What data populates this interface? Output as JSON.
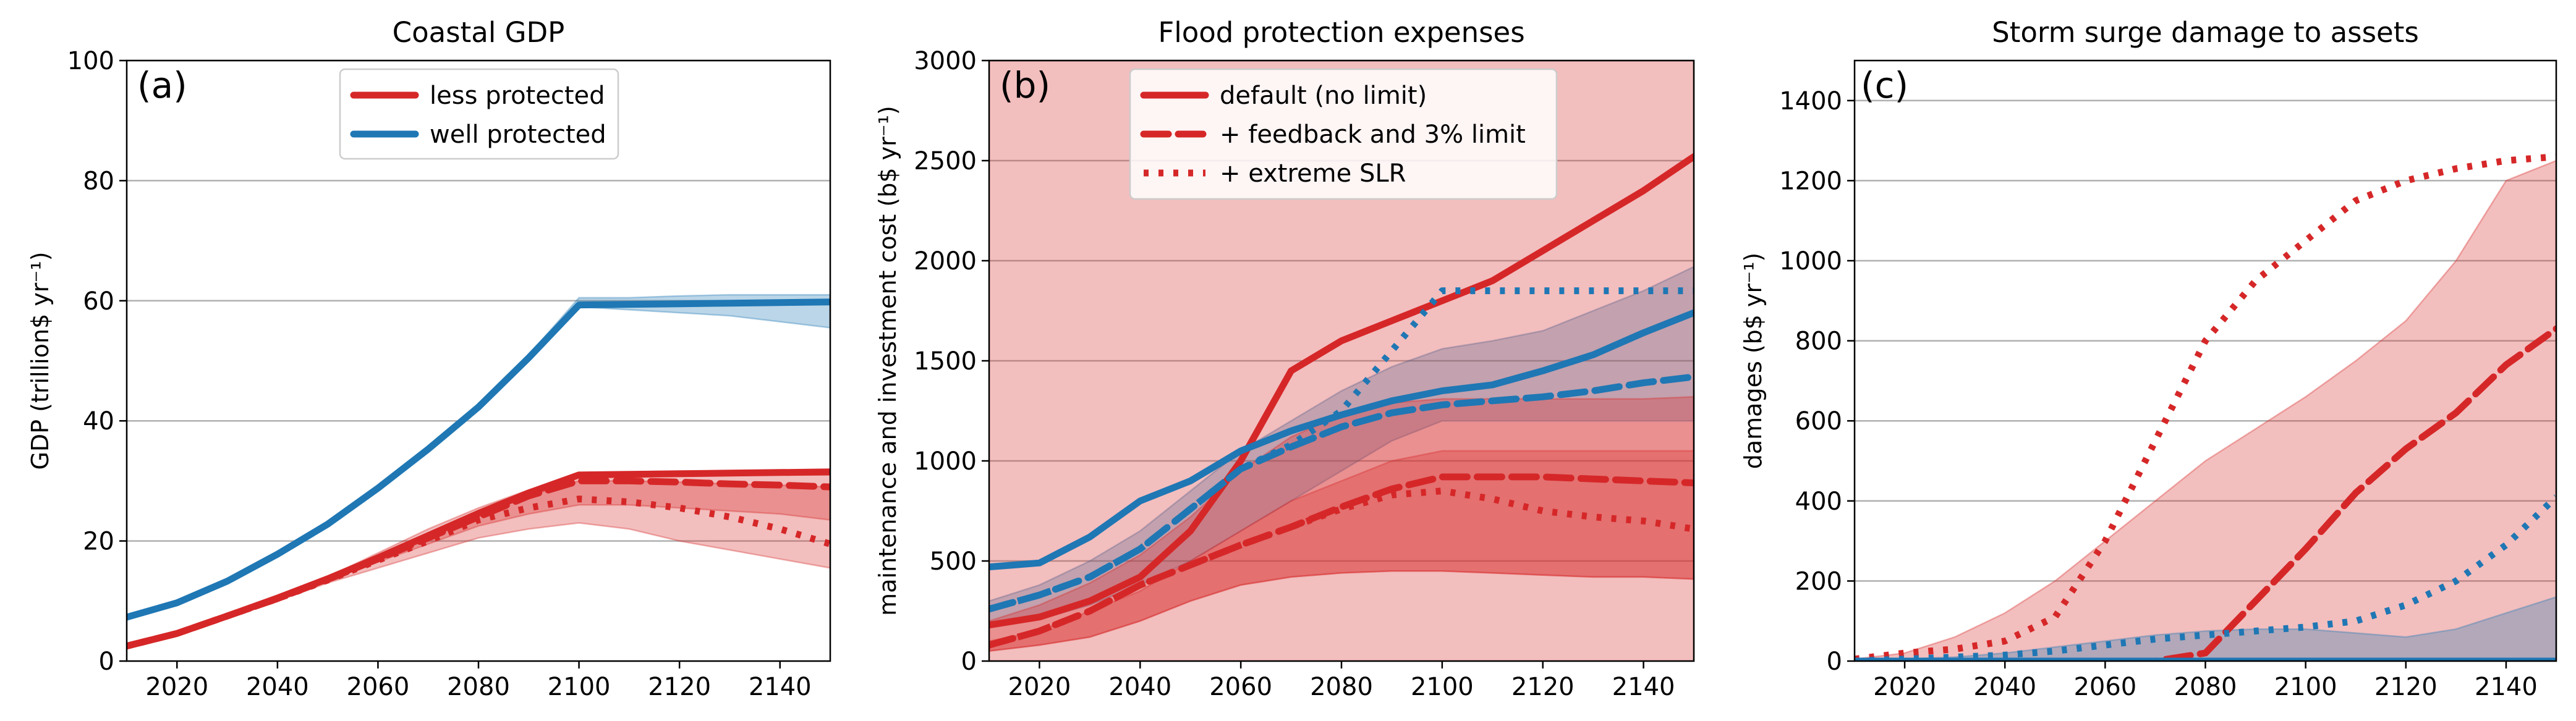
{
  "colors": {
    "red": "#d62728",
    "blue": "#1f77b4",
    "grid": "#b0b0b0"
  },
  "legend_a": [
    {
      "label": "less protected",
      "color": "#d62728",
      "style": "solid"
    },
    {
      "label": "well protected",
      "color": "#1f77b4",
      "style": "solid"
    }
  ],
  "legend_b": [
    {
      "label": "default (no limit)",
      "color": "#d62728",
      "style": "solid"
    },
    {
      "label": " + feedback and 3% limit",
      "color": "#d62728",
      "style": "dashed"
    },
    {
      "label": " + extreme SLR",
      "color": "#d62728",
      "style": "dotted"
    }
  ],
  "chart_data": [
    {
      "type": "line",
      "panel": "(a)",
      "title": "Coastal GDP",
      "xlabel": "",
      "ylabel": "GDP (trillion$ yr⁻¹)",
      "xlim": [
        2010,
        2150
      ],
      "ylim": [
        0,
        100
      ],
      "xticks": [
        "2020",
        "2040",
        "2060",
        "2080",
        "2100",
        "2120",
        "2140"
      ],
      "yticks": [
        "0",
        "20",
        "40",
        "60",
        "80",
        "100"
      ],
      "grid": "horizontal",
      "legend_position": "top-center",
      "x": [
        2010,
        2020,
        2030,
        2040,
        2050,
        2060,
        2070,
        2080,
        2090,
        2100,
        2110,
        2120,
        2130,
        2140,
        2150
      ],
      "bands": [
        {
          "color": "blue",
          "lower": [
            7.2,
            9.5,
            13,
            17.5,
            22.5,
            28.5,
            35,
            42,
            50,
            59,
            58.5,
            58,
            57.5,
            56.5,
            55.5
          ],
          "upper": [
            7.5,
            9.8,
            13.5,
            18,
            23,
            29,
            35.5,
            42.5,
            51,
            60.5,
            60.5,
            60.8,
            61,
            61,
            61
          ]
        },
        {
          "color": "red",
          "lower": [
            2.3,
            4.3,
            7.2,
            10,
            13,
            15.5,
            18,
            20.5,
            22,
            23,
            22,
            20,
            18.5,
            17,
            15.5
          ],
          "upper": [
            2.5,
            4.8,
            7.7,
            10.8,
            14,
            18,
            22,
            25.5,
            28.5,
            31,
            31,
            31,
            31,
            31,
            31
          ]
        },
        {
          "color": "red",
          "lower": [
            2.4,
            4.5,
            7.4,
            10.3,
            13.5,
            16.5,
            19.5,
            22.5,
            24.5,
            26,
            26,
            25.5,
            25,
            24.5,
            23.5
          ],
          "upper": [
            2.5,
            4.7,
            7.6,
            10.6,
            13.8,
            17.3,
            21,
            24.5,
            27.5,
            30,
            30,
            29.8,
            29.5,
            29.3,
            29
          ]
        }
      ],
      "series": [
        {
          "name": "well protected",
          "color": "blue",
          "style": "solid",
          "values": [
            7.3,
            9.7,
            13.3,
            17.8,
            22.8,
            28.8,
            35.3,
            42.3,
            50.5,
            59.3,
            59.4,
            59.5,
            59.6,
            59.7,
            59.8
          ]
        },
        {
          "name": "less protected",
          "color": "red",
          "style": "solid",
          "values": [
            2.5,
            4.6,
            7.5,
            10.5,
            13.7,
            17.2,
            20.9,
            24.6,
            28,
            31,
            31.1,
            31.2,
            31.3,
            31.4,
            31.5
          ]
        },
        {
          "color": "red",
          "style": "dashed",
          "values": [
            2.5,
            4.6,
            7.5,
            10.4,
            13.6,
            17,
            20.5,
            24,
            27.5,
            30,
            30,
            29.8,
            29.5,
            29.3,
            29
          ]
        },
        {
          "color": "red",
          "style": "dotted",
          "values": [
            2.5,
            4.6,
            7.5,
            10.4,
            13.5,
            16.8,
            20,
            23.5,
            25.5,
            27,
            26.5,
            25.5,
            24,
            22,
            19.5
          ]
        }
      ]
    },
    {
      "type": "line",
      "panel": "(b)",
      "title": "Flood protection expenses",
      "xlabel": "",
      "ylabel": "maintenance and investment cost (b$ yr⁻¹)",
      "xlim": [
        2010,
        2150
      ],
      "ylim": [
        0,
        3000
      ],
      "xticks": [
        "2020",
        "2040",
        "2060",
        "2080",
        "2100",
        "2120",
        "2140"
      ],
      "yticks": [
        "0",
        "500",
        "1000",
        "1500",
        "2000",
        "2500",
        "3000"
      ],
      "grid": "horizontal",
      "legend_position": "top-center",
      "x": [
        2010,
        2020,
        2030,
        2040,
        2050,
        2060,
        2070,
        2080,
        2090,
        2100,
        2110,
        2120,
        2130,
        2140,
        2150
      ],
      "bands": [
        {
          "color": "blue",
          "lower": [
            180,
            210,
            280,
            380,
            500,
            650,
            800,
            950,
            1100,
            1200,
            1200,
            1200,
            1200,
            1200,
            1200
          ],
          "upper": [
            300,
            380,
            500,
            650,
            850,
            1050,
            1200,
            1350,
            1470,
            1560,
            1600,
            1650,
            1750,
            1850,
            1970
          ]
        },
        {
          "color": "red",
          "lower": [
            50,
            80,
            120,
            200,
            300,
            380,
            420,
            440,
            450,
            450,
            440,
            430,
            420,
            420,
            410
          ]
        },
        {
          "color": "red",
          "upper": [
            200,
            280,
            390,
            530,
            720,
            950,
            1120,
            1230,
            1290,
            1310,
            1310,
            1310,
            1310,
            1310,
            1320
          ]
        },
        {
          "color": "red",
          "lower": [
            50,
            80,
            120,
            200,
            300,
            380,
            420,
            440,
            450,
            450,
            440,
            430,
            420,
            420,
            410
          ],
          "upper": [
            100,
            150,
            250,
            350,
            500,
            650,
            800,
            900,
            1000,
            1050,
            1050,
            1050,
            1050,
            1050,
            1050
          ]
        }
      ],
      "series": [
        {
          "name": "default (no limit)",
          "color": "red",
          "style": "solid",
          "values": [
            180,
            220,
            300,
            420,
            650,
            1000,
            1450,
            1600,
            1700,
            1800,
            1900,
            2050,
            2200,
            2350,
            2520
          ]
        },
        {
          "name": " + feedback and 3% limit",
          "color": "red",
          "style": "dashed",
          "values": [
            80,
            150,
            250,
            380,
            480,
            580,
            670,
            770,
            860,
            920,
            920,
            920,
            910,
            900,
            890
          ]
        },
        {
          "name": " + extreme SLR",
          "color": "red",
          "style": "dotted",
          "values": [
            80,
            150,
            250,
            380,
            480,
            580,
            670,
            760,
            830,
            850,
            810,
            750,
            720,
            700,
            660
          ]
        },
        {
          "color": "blue",
          "style": "solid",
          "values": [
            470,
            490,
            620,
            800,
            900,
            1050,
            1150,
            1230,
            1300,
            1350,
            1380,
            1450,
            1530,
            1640,
            1740
          ]
        },
        {
          "color": "blue",
          "style": "dashed",
          "values": [
            260,
            330,
            420,
            560,
            760,
            960,
            1070,
            1170,
            1240,
            1280,
            1300,
            1320,
            1350,
            1390,
            1420
          ]
        },
        {
          "color": "blue",
          "style": "dotted",
          "values": [
            260,
            330,
            420,
            560,
            760,
            960,
            1080,
            1250,
            1550,
            1850,
            1850,
            1850,
            1850,
            1850,
            1850
          ]
        }
      ]
    },
    {
      "type": "line",
      "panel": "(c)",
      "title": "Storm surge damage to assets",
      "xlabel": "",
      "ylabel": "damages (b$ yr⁻¹)",
      "xlim": [
        2010,
        2150
      ],
      "ylim": [
        0,
        1500
      ],
      "xticks": [
        "2020",
        "2040",
        "2060",
        "2080",
        "2100",
        "2120",
        "2140"
      ],
      "yticks": [
        "0",
        "200",
        "400",
        "600",
        "800",
        "1000",
        "1200",
        "1400"
      ],
      "grid": "horizontal",
      "x": [
        2010,
        2020,
        2030,
        2040,
        2050,
        2060,
        2070,
        2080,
        2090,
        2100,
        2110,
        2120,
        2130,
        2140,
        2150
      ],
      "bands": [
        {
          "color": "red",
          "lower": [
            0,
            0,
            0,
            0,
            0,
            0,
            0,
            0,
            0,
            0,
            0,
            0,
            0,
            0,
            0
          ],
          "upper": [
            5,
            20,
            60,
            120,
            200,
            300,
            400,
            500,
            580,
            660,
            750,
            850,
            1000,
            1200,
            1250
          ]
        },
        {
          "color": "blue",
          "lower": [
            0,
            0,
            0,
            0,
            0,
            0,
            0,
            0,
            0,
            0,
            0,
            0,
            0,
            0,
            0
          ],
          "upper": [
            2,
            5,
            10,
            20,
            35,
            50,
            65,
            75,
            80,
            80,
            70,
            60,
            80,
            120,
            160
          ]
        }
      ],
      "series": [
        {
          "color": "red",
          "style": "dotted",
          "values": [
            5,
            20,
            30,
            50,
            110,
            300,
            550,
            800,
            950,
            1050,
            1150,
            1200,
            1230,
            1250,
            1260
          ]
        },
        {
          "color": "red",
          "style": "dashed",
          "values": [
            0,
            0,
            0,
            0,
            0,
            0,
            0,
            20,
            150,
            280,
            420,
            530,
            620,
            740,
            830
          ]
        },
        {
          "color": "blue",
          "style": "dotted",
          "values": [
            0,
            5,
            10,
            15,
            25,
            40,
            55,
            65,
            75,
            85,
            100,
            140,
            200,
            290,
            410
          ]
        },
        {
          "color": "blue",
          "style": "solid",
          "values": [
            0,
            0,
            0,
            0,
            0,
            0,
            0,
            0,
            0,
            0,
            0,
            0,
            0,
            0,
            0
          ]
        }
      ]
    }
  ]
}
